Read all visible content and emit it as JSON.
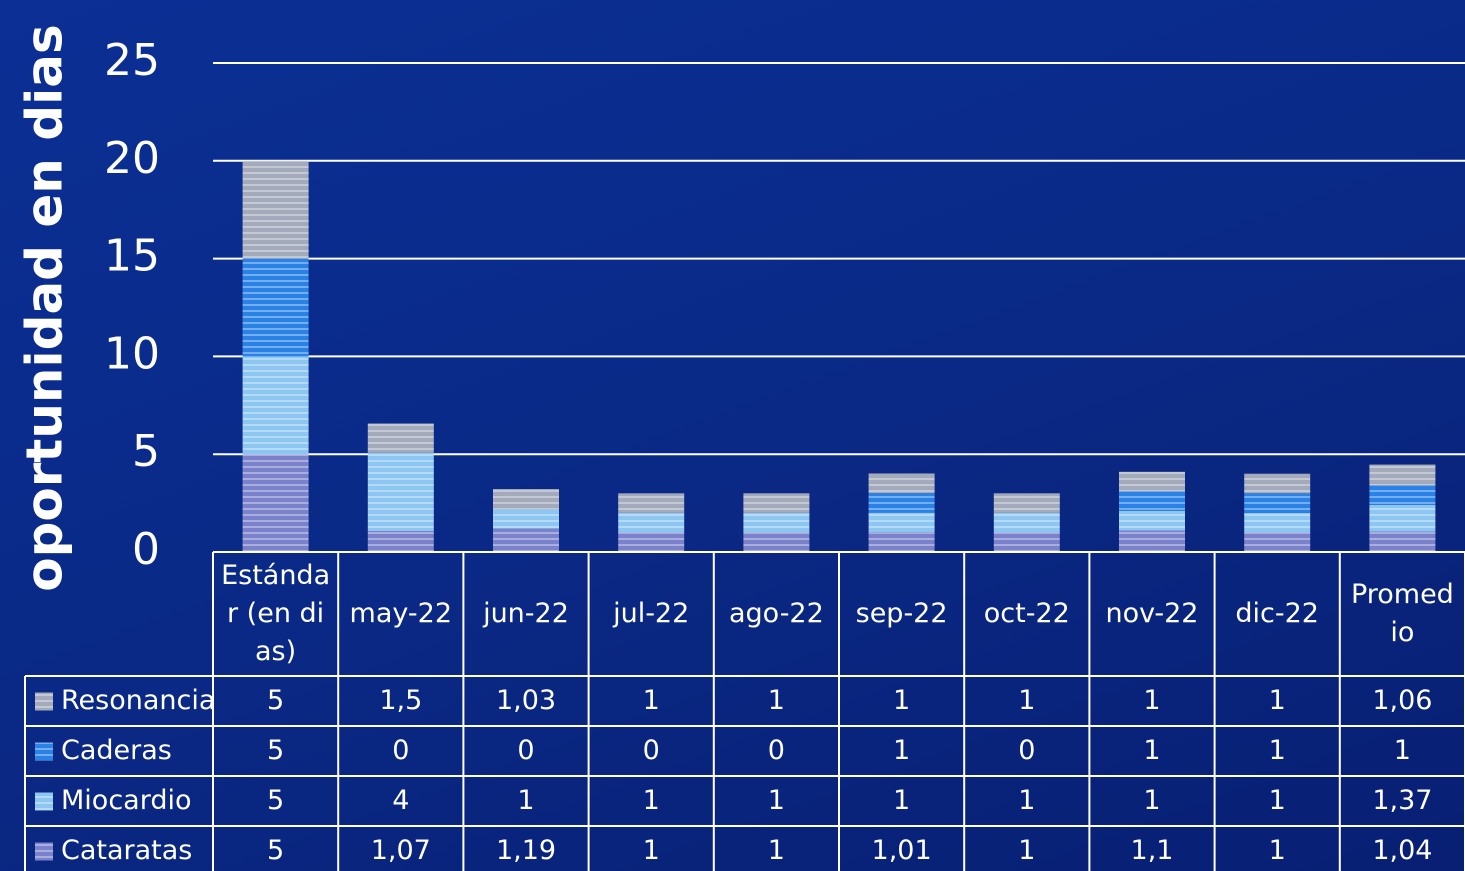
{
  "chart_data": {
    "type": "bar",
    "stacked": true,
    "y_label": "oportunidad en dias",
    "categories": [
      "Estándar (en dias)",
      "may-22",
      "jun-22",
      "jul-22",
      "ago-22",
      "sep-22",
      "oct-22",
      "nov-22",
      "dic-22",
      "Promedio"
    ],
    "series": [
      {
        "name": "Resonancia",
        "color": "#a3aabb",
        "values": [
          5,
          1.5,
          1.03,
          1,
          1,
          1,
          1,
          1,
          1,
          1.06
        ],
        "value_labels": [
          "5",
          "1,5",
          "1,03",
          "1",
          "1",
          "1",
          "1",
          "1",
          "1",
          "1,06"
        ]
      },
      {
        "name": "Caderas",
        "color": "#2b82e6",
        "values": [
          5,
          0,
          0,
          0,
          0,
          1,
          0,
          1,
          1,
          1
        ],
        "value_labels": [
          "5",
          "0",
          "0",
          "0",
          "0",
          "1",
          "0",
          "1",
          "1",
          "1"
        ]
      },
      {
        "name": "Miocardio",
        "color": "#8ec6f2",
        "values": [
          5,
          4,
          1,
          1,
          1,
          1,
          1,
          1,
          1,
          1.37
        ],
        "value_labels": [
          "5",
          "4",
          "1",
          "1",
          "1",
          "1",
          "1",
          "1",
          "1",
          "1,37"
        ]
      },
      {
        "name": "Cataratas",
        "color": "#7b82cc",
        "values": [
          5,
          1.07,
          1.19,
          1,
          1,
          1.01,
          1,
          1.1,
          1,
          1.04
        ],
        "value_labels": [
          "5",
          "1,07",
          "1,19",
          "1",
          "1",
          "1,01",
          "1",
          "1,1",
          "1",
          "1,04"
        ]
      }
    ],
    "ylim": [
      0,
      25
    ],
    "yticks": [
      0,
      5,
      10,
      15,
      20,
      25
    ],
    "grid": true
  }
}
